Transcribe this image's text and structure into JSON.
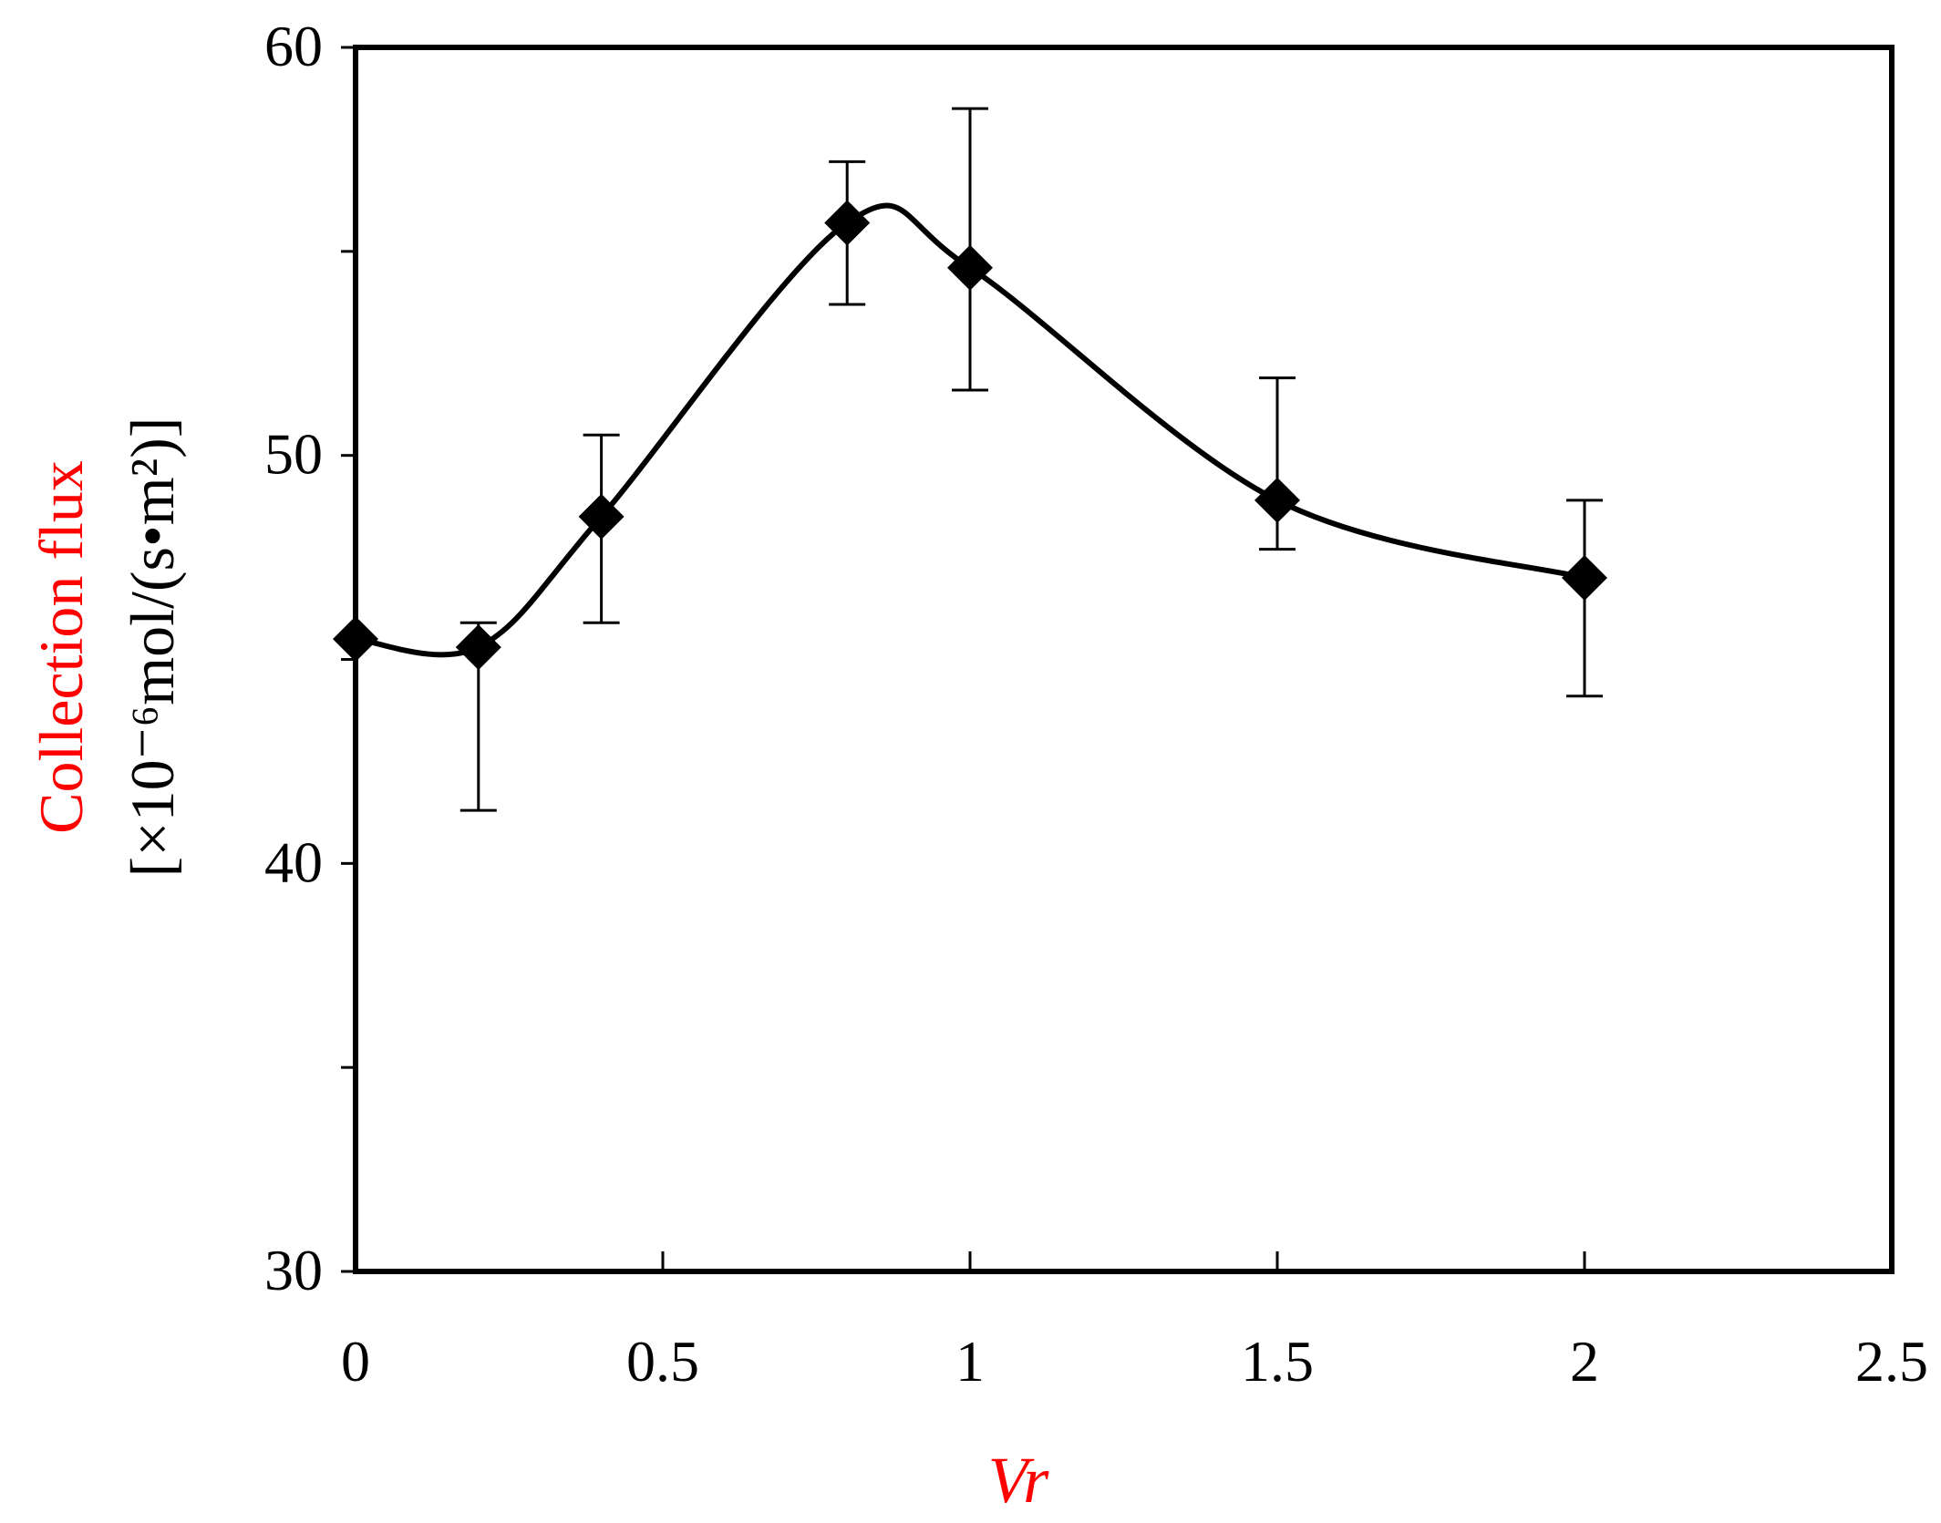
{
  "chart_data": {
    "type": "line",
    "title": "",
    "xlabel": "Vr",
    "ylabel_line1": "Collection flux",
    "ylabel_line2": "[×10⁻⁶mol/(s•m²)]",
    "xlim": [
      0,
      2.5
    ],
    "ylim": [
      30,
      60
    ],
    "xticks": [
      0,
      0.5,
      1,
      1.5,
      2,
      2.5
    ],
    "xtick_labels": [
      "0",
      "0.5",
      "1",
      "1.5",
      "2",
      "2.5"
    ],
    "yticks": [
      30,
      40,
      50,
      60
    ],
    "ytick_labels": [
      "30",
      "40",
      "50",
      "60"
    ],
    "grid": false,
    "legend": false,
    "series": [
      {
        "marker": "diamond",
        "smooth": true,
        "x": [
          0,
          0.2,
          0.4,
          0.8,
          1.0,
          1.5,
          2.0
        ],
        "y": [
          45.5,
          45.3,
          48.5,
          55.7,
          54.6,
          48.9,
          47.0
        ],
        "error_lower": [
          45.5,
          41.3,
          45.9,
          53.7,
          51.6,
          47.7,
          44.1
        ],
        "error_upper": [
          45.5,
          45.9,
          50.5,
          57.2,
          58.5,
          51.9,
          48.9
        ]
      }
    ],
    "colors": {
      "axis": "#000000",
      "series": "#000000",
      "ylabel_line1": "#ff0000",
      "ylabel_line2": "#000000",
      "xlabel": "#ff0000"
    }
  }
}
